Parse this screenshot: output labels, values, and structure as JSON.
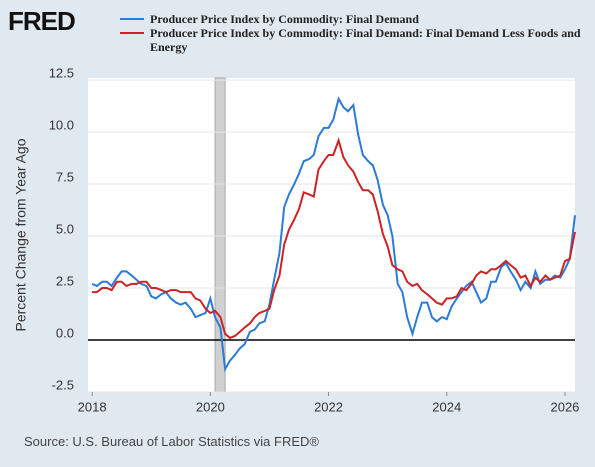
{
  "logo": "FRED",
  "source": "Source: U.S. Bureau of Labor Statistics via FRED®",
  "chart_data": {
    "type": "line",
    "y_label": "Percent Change from Year Ago",
    "xlim": [
      2017.93,
      2026.17
    ],
    "xticks": [
      2018,
      2020,
      2022,
      2024,
      2026
    ],
    "ylim": [
      -2.5,
      12.6
    ],
    "yticks": [
      -2.5,
      {
        "value": 0,
        "label": "0.0"
      },
      2.5,
      {
        "value": 5,
        "label": "5.0"
      },
      7.5,
      {
        "value": 10,
        "label": "10.0"
      },
      12.5
    ],
    "grid": true,
    "zero_line": true,
    "shaded": [
      2020.08,
      2020.25
    ],
    "x": [
      2018.0,
      2018.08,
      2018.17,
      2018.25,
      2018.33,
      2018.42,
      2018.5,
      2018.58,
      2018.67,
      2018.75,
      2018.83,
      2018.92,
      2019.0,
      2019.08,
      2019.17,
      2019.25,
      2019.33,
      2019.42,
      2019.5,
      2019.58,
      2019.67,
      2019.75,
      2019.83,
      2019.92,
      2020.0,
      2020.08,
      2020.17,
      2020.25,
      2020.33,
      2020.42,
      2020.5,
      2020.58,
      2020.67,
      2020.75,
      2020.83,
      2020.92,
      2021.0,
      2021.08,
      2021.17,
      2021.25,
      2021.33,
      2021.42,
      2021.5,
      2021.58,
      2021.67,
      2021.75,
      2021.83,
      2021.92,
      2022.0,
      2022.08,
      2022.17,
      2022.25,
      2022.33,
      2022.42,
      2022.5,
      2022.58,
      2022.67,
      2022.75,
      2022.83,
      2022.92,
      2023.0,
      2023.08,
      2023.17,
      2023.25,
      2023.33,
      2023.42,
      2023.5,
      2023.58,
      2023.67,
      2023.75,
      2023.83,
      2023.92,
      2024.0,
      2024.08,
      2024.17,
      2024.25,
      2024.33,
      2024.42,
      2024.5,
      2024.58,
      2024.67,
      2024.75,
      2024.83,
      2024.92,
      2025.0,
      2025.08,
      2025.17,
      2025.25,
      2025.33,
      2025.42,
      2025.5,
      2025.58,
      2025.67,
      2025.75,
      2025.83,
      2025.92,
      2026.0,
      2026.08,
      2026.17
    ],
    "series": [
      {
        "name": "Producer Price Index by Commodity: Final Demand",
        "color": "#2b7bd8",
        "values": [
          2.7,
          2.6,
          2.8,
          2.8,
          2.6,
          3.0,
          3.3,
          3.3,
          3.1,
          2.9,
          2.7,
          2.6,
          2.1,
          2.0,
          2.2,
          2.3,
          2.0,
          1.8,
          1.7,
          1.8,
          1.5,
          1.1,
          1.2,
          1.3,
          2.0,
          1.1,
          0.6,
          -1.4,
          -1.0,
          -0.7,
          -0.4,
          -0.2,
          0.4,
          0.5,
          0.8,
          0.9,
          1.7,
          2.9,
          4.2,
          6.4,
          7.0,
          7.5,
          8.0,
          8.6,
          8.7,
          8.9,
          9.8,
          10.2,
          10.2,
          10.6,
          11.6,
          11.2,
          11.0,
          11.3,
          9.9,
          8.9,
          8.6,
          8.4,
          7.7,
          6.5,
          6.0,
          5.0,
          2.7,
          2.3,
          1.1,
          0.3,
          1.1,
          1.8,
          1.8,
          1.1,
          0.9,
          1.1,
          1.0,
          1.6,
          2.0,
          2.3,
          2.6,
          2.8,
          2.3,
          1.8,
          2.0,
          2.8,
          2.8,
          3.5,
          3.7,
          3.3,
          2.9,
          2.4,
          2.8,
          2.5,
          3.3,
          2.7,
          2.9,
          2.9,
          3.1,
          3.0,
          3.4,
          3.9,
          6.0
        ]
      },
      {
        "name": "Producer Price Index by Commodity: Final Demand: Final Demand Less Foods and Energy",
        "color": "#cc2424",
        "values": [
          2.3,
          2.3,
          2.5,
          2.5,
          2.4,
          2.8,
          2.8,
          2.6,
          2.7,
          2.7,
          2.8,
          2.8,
          2.5,
          2.5,
          2.4,
          2.3,
          2.4,
          2.4,
          2.3,
          2.3,
          2.3,
          2.0,
          1.9,
          1.5,
          1.3,
          1.4,
          1.1,
          0.3,
          0.1,
          0.2,
          0.4,
          0.6,
          0.8,
          1.1,
          1.3,
          1.4,
          1.5,
          2.4,
          3.1,
          4.6,
          5.3,
          5.8,
          6.3,
          7.1,
          7.0,
          6.9,
          8.2,
          8.6,
          8.9,
          8.9,
          9.6,
          8.8,
          8.4,
          8.1,
          7.6,
          7.2,
          7.2,
          7.0,
          6.2,
          5.1,
          4.5,
          3.6,
          3.4,
          3.3,
          2.8,
          2.6,
          2.7,
          2.4,
          2.2,
          2.0,
          1.8,
          1.7,
          2.0,
          2.0,
          2.1,
          2.5,
          2.4,
          2.7,
          3.1,
          3.3,
          3.2,
          3.4,
          3.4,
          3.6,
          3.8,
          3.6,
          3.4,
          3.0,
          3.1,
          2.6,
          3.0,
          2.8,
          3.1,
          2.9,
          3.0,
          3.1,
          3.8,
          3.9,
          5.2
        ]
      }
    ]
  }
}
